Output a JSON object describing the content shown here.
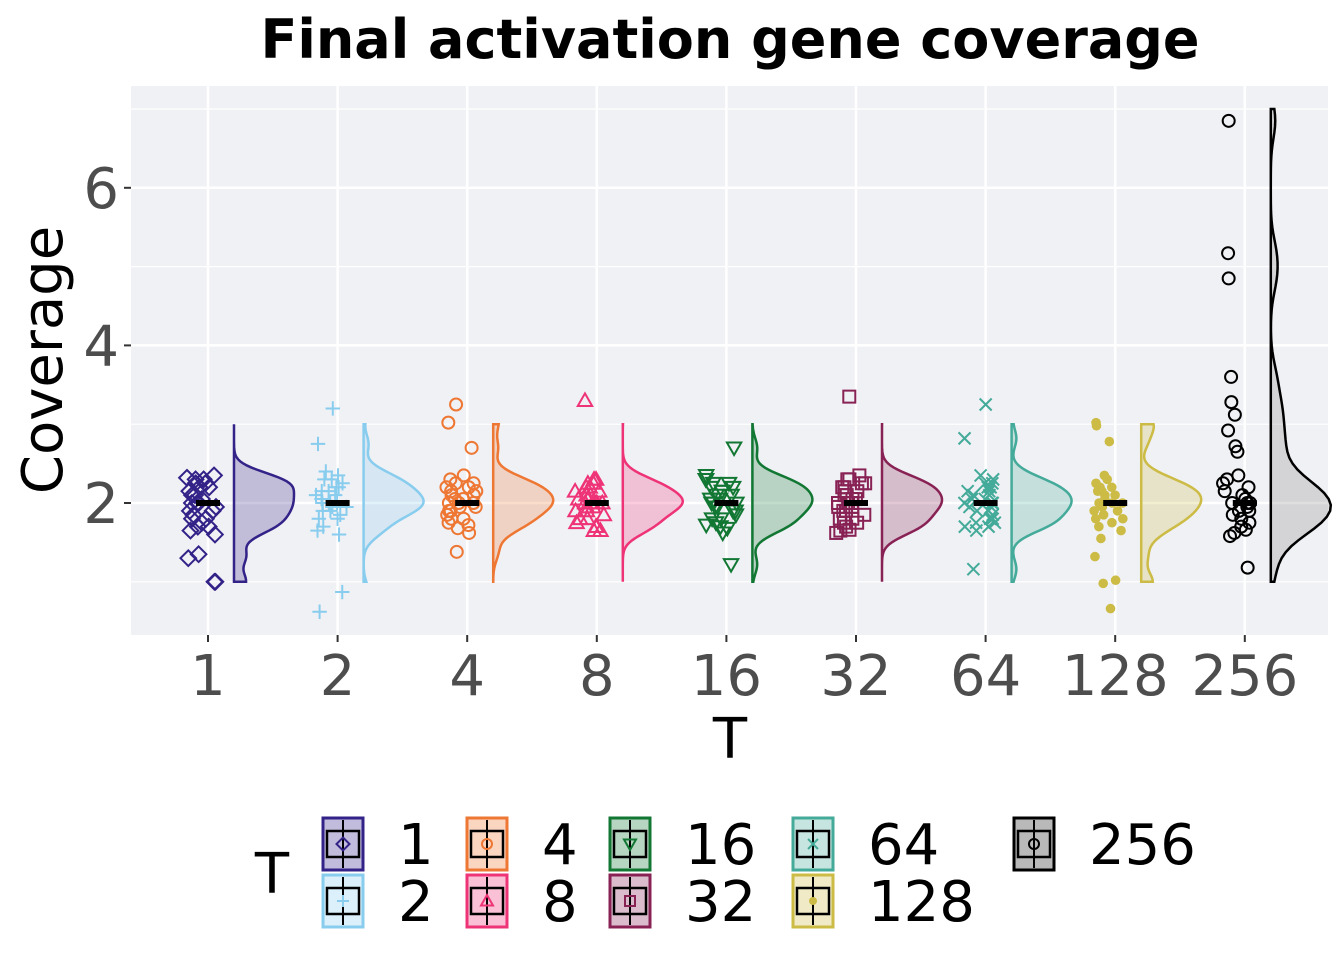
{
  "chart_data": {
    "type": "raincloud",
    "title": "Final activation gene coverage",
    "xlabel": "T",
    "ylabel": "Coverage",
    "categories": [
      "1",
      "2",
      "4",
      "8",
      "16",
      "32",
      "64",
      "128",
      "256"
    ],
    "ylim": [
      0.3,
      7.3
    ],
    "yticks": [
      2,
      4,
      6
    ],
    "grid": true,
    "legend": {
      "title": "T",
      "position": "bottom",
      "entries": [
        "1",
        "4",
        "16",
        "64",
        "256",
        "2",
        "8",
        "32",
        "128"
      ]
    },
    "series": [
      {
        "name": "1",
        "color": "#332288",
        "shape": "diamond",
        "median": 2.0,
        "box": [
          2.0,
          2.0,
          2.0
        ],
        "points": [
          1.0,
          1.0,
          1.3,
          1.35,
          1.6,
          1.65,
          1.7,
          1.75,
          1.8,
          1.85,
          1.9,
          1.95,
          2.0,
          2.0,
          2.05,
          2.1,
          2.15,
          2.2,
          2.25,
          2.3,
          2.32,
          2.35,
          2.1,
          1.9,
          2.2,
          1.8,
          2.3,
          2.0,
          1.7,
          2.25
        ]
      },
      {
        "name": "2",
        "color": "#88CCEE",
        "shape": "plus",
        "median": 2.0,
        "box": [
          2.0,
          2.0,
          2.0
        ],
        "points": [
          0.62,
          0.87,
          1.6,
          1.65,
          1.7,
          1.8,
          1.85,
          1.9,
          1.95,
          2.0,
          2.0,
          2.0,
          2.05,
          2.1,
          2.15,
          2.2,
          2.25,
          2.3,
          2.35,
          2.4,
          2.75,
          3.2,
          1.9,
          2.1,
          2.2,
          1.8,
          2.3,
          2.0,
          2.15,
          1.95
        ]
      },
      {
        "name": "4",
        "color": "#EE7733",
        "shape": "circle",
        "median": 2.0,
        "box": [
          2.0,
          2.0,
          2.0
        ],
        "points": [
          1.38,
          1.62,
          1.68,
          1.72,
          1.8,
          1.85,
          1.9,
          1.95,
          2.0,
          2.0,
          2.05,
          2.1,
          2.15,
          2.2,
          2.25,
          2.3,
          2.35,
          2.7,
          3.02,
          3.25,
          1.9,
          2.1,
          2.2,
          1.8,
          2.0,
          2.15,
          1.95,
          2.05,
          1.75,
          2.25
        ]
      },
      {
        "name": "8",
        "color": "#EE3377",
        "shape": "triangle",
        "median": 2.0,
        "box": [
          2.0,
          2.0,
          2.0
        ],
        "points": [
          1.65,
          1.7,
          1.75,
          1.8,
          1.85,
          1.9,
          1.95,
          2.0,
          2.0,
          2.0,
          2.05,
          2.1,
          2.15,
          2.2,
          2.25,
          2.3,
          3.3,
          1.9,
          2.1,
          2.2,
          1.8,
          2.0,
          2.15,
          1.95,
          2.05,
          1.7,
          2.25,
          2.3,
          1.65,
          2.0
        ]
      },
      {
        "name": "16",
        "color": "#117733",
        "shape": "triangle-down",
        "median": 2.0,
        "box": [
          2.0,
          2.0,
          2.0
        ],
        "points": [
          1.22,
          1.62,
          1.68,
          1.72,
          1.8,
          1.85,
          1.9,
          1.95,
          2.0,
          2.0,
          2.05,
          2.1,
          2.15,
          2.2,
          2.25,
          2.3,
          2.35,
          2.7,
          1.9,
          2.1,
          2.2,
          1.8,
          2.0,
          2.15,
          1.95,
          2.05,
          1.75,
          2.25,
          1.7,
          2.3
        ]
      },
      {
        "name": "32",
        "color": "#882255",
        "shape": "square",
        "median": 2.0,
        "box": [
          2.0,
          2.0,
          2.0
        ],
        "points": [
          1.62,
          1.66,
          1.7,
          1.75,
          1.8,
          1.85,
          1.9,
          1.95,
          2.0,
          2.0,
          2.05,
          2.1,
          2.15,
          2.2,
          2.25,
          2.3,
          2.35,
          3.35,
          1.9,
          2.1,
          2.2,
          1.8,
          2.0,
          2.15,
          1.95,
          2.05,
          1.75,
          2.25,
          1.65,
          2.3
        ]
      },
      {
        "name": "64",
        "color": "#44AA99",
        "shape": "cross",
        "median": 2.0,
        "box": [
          2.0,
          2.0,
          2.0
        ],
        "points": [
          1.16,
          1.65,
          1.7,
          1.75,
          1.8,
          1.85,
          1.9,
          1.95,
          2.0,
          2.0,
          2.05,
          2.1,
          2.15,
          2.2,
          2.25,
          2.3,
          2.35,
          2.82,
          3.25,
          1.9,
          2.1,
          2.2,
          1.8,
          2.0,
          2.15,
          1.95,
          2.05,
          1.75,
          2.25,
          1.7
        ]
      },
      {
        "name": "128",
        "color": "#CCBB44",
        "shape": "dot",
        "median": 2.0,
        "box": [
          2.0,
          2.0,
          2.0
        ],
        "points": [
          0.66,
          0.98,
          1.02,
          1.32,
          1.55,
          1.65,
          1.7,
          1.75,
          1.8,
          1.85,
          1.9,
          1.95,
          2.0,
          2.0,
          2.05,
          2.1,
          2.15,
          2.2,
          2.25,
          2.3,
          2.35,
          2.78,
          2.98,
          3.02,
          1.9,
          2.1,
          2.2,
          1.8,
          2.0,
          2.15
        ]
      },
      {
        "name": "256",
        "color": "#000000",
        "shape": "circle",
        "median": 2.0,
        "box": [
          2.0,
          2.0,
          2.0
        ],
        "points": [
          1.18,
          1.58,
          1.62,
          1.66,
          1.7,
          1.75,
          1.8,
          1.85,
          1.9,
          1.95,
          2.0,
          2.0,
          2.05,
          2.1,
          2.15,
          2.2,
          2.25,
          2.3,
          2.35,
          2.65,
          2.72,
          2.92,
          3.12,
          3.28,
          3.6,
          4.85,
          5.17,
          6.85,
          2.0,
          1.9
        ]
      }
    ]
  }
}
